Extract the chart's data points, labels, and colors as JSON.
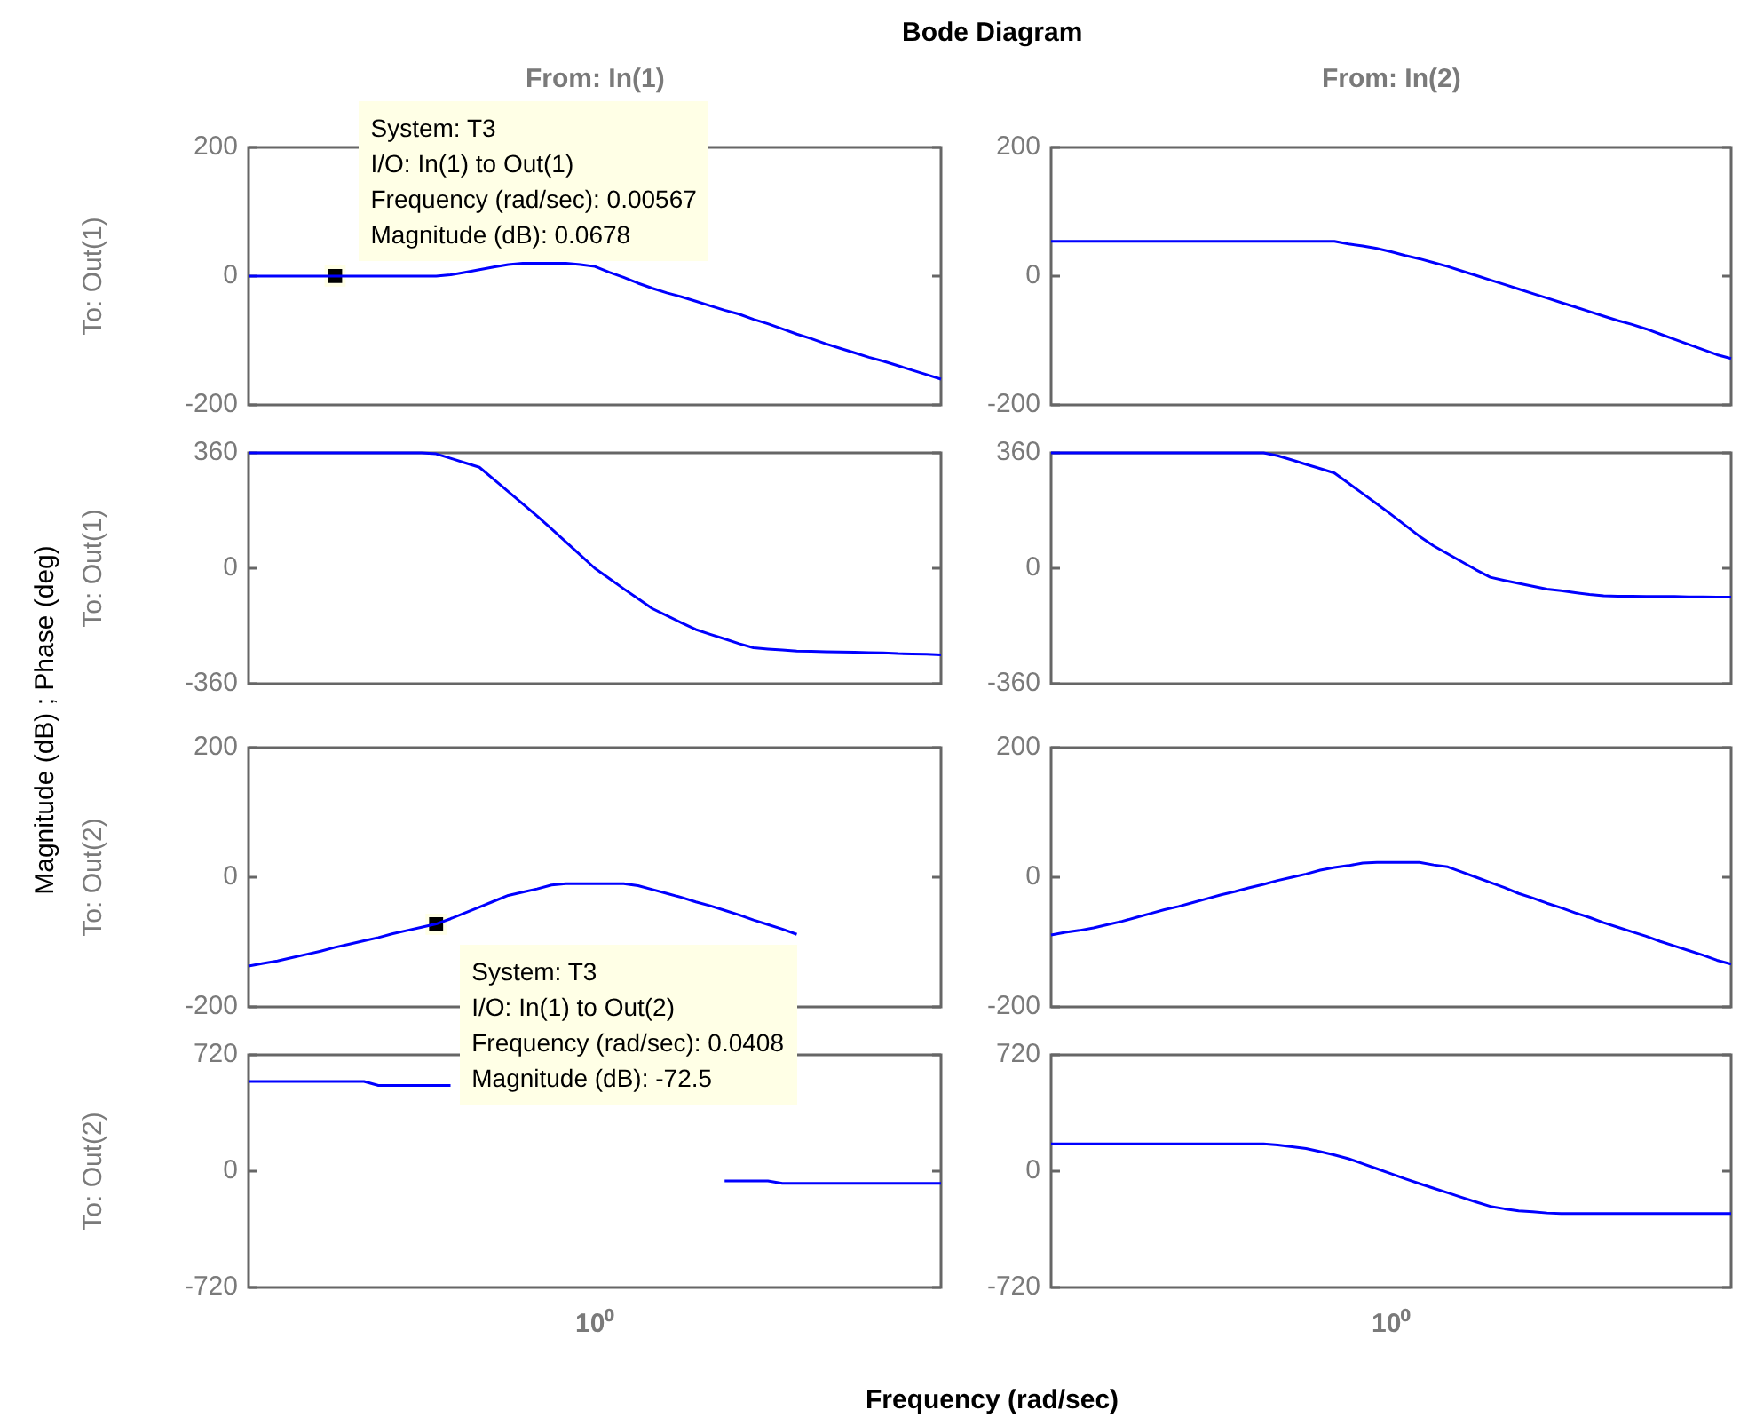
{
  "chart_data": [
    {
      "type": "line",
      "title": "Bode Diagram",
      "subtitle": "From: In(1)",
      "ylabel": "To: Out(1)",
      "tick_labels": "y",
      "categories": [
        null,
        null,
        null,
        null,
        null,
        null,
        null,
        null,
        null,
        null,
        null,
        null,
        null,
        null,
        null,
        null,
        null,
        null,
        null,
        null,
        null,
        null,
        null,
        null,
        null,
        null,
        null,
        null,
        null,
        null,
        null,
        null,
        null,
        null,
        null,
        null,
        null,
        null,
        null,
        null,
        null,
        null,
        null,
        null,
        null,
        null,
        null,
        null,
        null
      ],
      "series": [
        {
          "color": "#0000ff",
          "values": [
            0,
            0,
            0,
            0,
            0,
            0,
            0,
            0,
            0,
            0,
            0,
            0,
            0,
            0,
            2,
            6,
            10,
            14,
            18,
            20,
            20,
            20,
            20,
            18,
            15,
            6,
            -2,
            -11,
            -19,
            -26,
            -32,
            -39,
            -46,
            -53,
            -59,
            -67,
            -74,
            -82,
            -90,
            -97,
            -105,
            -112,
            -119,
            -126,
            -132,
            -139,
            -146,
            -153,
            -160
          ]
        },
        {
          "type": "scatter",
          "marker": "square",
          "color": "#000000",
          "values": [
            null,
            null,
            null,
            null,
            null,
            null,
            0.0678,
            null,
            null,
            null,
            null,
            null,
            null,
            null,
            null,
            null,
            null,
            null,
            null,
            null,
            null,
            null,
            null,
            null,
            null,
            null,
            null,
            null,
            null,
            null,
            null,
            null,
            null,
            null,
            null,
            null,
            null,
            null,
            null,
            null,
            null,
            null,
            null,
            null,
            null,
            null,
            null,
            null,
            null
          ]
        }
      ],
      "ylim": [
        -200,
        200
      ],
      "yticks": [
        -200,
        0,
        200
      ],
      "annotations": [
        "System: T3\nI/O: In(1) to Out(1)\nFrequency (rad/sec): 0.00567\nMagnitude (dB): 0.0678"
      ]
    },
    {
      "type": "line",
      "subtitle": "From: In(2)",
      "tick_labels": "y",
      "color": "#0000ff",
      "categories": [
        null,
        null,
        null,
        null,
        null,
        null,
        null,
        null,
        null,
        null,
        null,
        null,
        null,
        null,
        null,
        null,
        null,
        null,
        null,
        null,
        null,
        null,
        null,
        null,
        null,
        null,
        null,
        null,
        null,
        null,
        null,
        null,
        null,
        null,
        null,
        null,
        null,
        null,
        null,
        null,
        null,
        null,
        null,
        null,
        null,
        null,
        null,
        null,
        null
      ],
      "values": [
        54,
        54,
        54,
        54,
        54,
        54,
        54,
        54,
        54,
        54,
        54,
        54,
        54,
        54,
        54,
        54,
        54,
        54,
        54,
        54,
        54,
        50,
        47,
        43,
        38,
        32,
        27,
        21,
        15,
        8,
        1,
        -6,
        -13,
        -20,
        -27,
        -34,
        -41,
        -48,
        -55,
        -62,
        -69,
        -75,
        -82,
        -90,
        -98,
        -106,
        -114,
        -122,
        -128
      ],
      "ylim": [
        -200,
        200
      ],
      "yticks": [
        -200,
        0,
        200
      ]
    },
    {
      "type": "line",
      "ylabel": "To: Out(1)",
      "tick_labels": "y",
      "color": "#0000ff",
      "categories": [
        null,
        null,
        null,
        null,
        null,
        null,
        null,
        null,
        null,
        null,
        null,
        null,
        null,
        null,
        null,
        null,
        null,
        null,
        null,
        null,
        null,
        null,
        null,
        null,
        null,
        null,
        null,
        null,
        null,
        null,
        null,
        null,
        null,
        null,
        null,
        null,
        null,
        null,
        null,
        null,
        null,
        null,
        null,
        null,
        null,
        null,
        null,
        null,
        null
      ],
      "values": [
        360,
        360,
        360,
        360,
        360,
        360,
        360,
        360,
        360,
        360,
        360,
        360,
        360,
        357,
        343,
        329,
        315,
        277,
        239,
        201,
        163,
        123,
        82,
        41,
        0,
        -32,
        -64,
        -95,
        -126,
        -148,
        -170,
        -191,
        -206,
        -220,
        -235,
        -248,
        -252,
        -255,
        -258,
        -259,
        -260,
        -261,
        -262,
        -263,
        -264,
        -266,
        -267,
        -268,
        -270
      ],
      "ylim": [
        -360,
        360
      ],
      "yticks": [
        -360,
        0,
        360
      ],
      "annotations": [
        "Magnitude (dB) ; Phase (deg)"
      ]
    },
    {
      "type": "line",
      "tick_labels": "y",
      "color": "#0000ff",
      "categories": [
        null,
        null,
        null,
        null,
        null,
        null,
        null,
        null,
        null,
        null,
        null,
        null,
        null,
        null,
        null,
        null,
        null,
        null,
        null,
        null,
        null,
        null,
        null,
        null,
        null,
        null,
        null,
        null,
        null,
        null,
        null,
        null,
        null,
        null,
        null,
        null,
        null,
        null,
        null,
        null,
        null,
        null,
        null,
        null,
        null,
        null,
        null,
        null,
        null
      ],
      "values": [
        360,
        360,
        360,
        360,
        360,
        360,
        360,
        360,
        360,
        360,
        360,
        360,
        360,
        360,
        360,
        360,
        351,
        338,
        324,
        311,
        297,
        265,
        233,
        201,
        168,
        134,
        100,
        70,
        45,
        20,
        -5,
        -28,
        -38,
        -47,
        -56,
        -65,
        -70,
        -76,
        -82,
        -86,
        -87,
        -87,
        -88,
        -88,
        -88,
        -89,
        -89,
        -90,
        -90
      ],
      "ylim": [
        -360,
        360
      ],
      "yticks": [
        -360,
        0,
        360
      ]
    },
    {
      "type": "line",
      "ylabel": "To: Out(2)",
      "tick_labels": "y",
      "categories": [
        null,
        null,
        null,
        null,
        null,
        null,
        null,
        null,
        null,
        null,
        null,
        null,
        null,
        null,
        null,
        null,
        null,
        null,
        null,
        null,
        null,
        null,
        null,
        null,
        null,
        null,
        null,
        null,
        null,
        null,
        null,
        null,
        null,
        null,
        null,
        null,
        null,
        null,
        null,
        null,
        null,
        null,
        null,
        null,
        null,
        null,
        null,
        null,
        null
      ],
      "series": [
        {
          "color": "#0000ff",
          "values": [
            -137,
            -133,
            -129,
            -124,
            -119,
            -114,
            -108,
            -103,
            -98,
            -93,
            -87,
            -82,
            -77,
            -72,
            -64,
            -55,
            -46,
            -37,
            -28,
            -23,
            -18,
            -12,
            -10,
            -10,
            -10,
            -10,
            -10,
            -13,
            -19,
            -25,
            -31,
            -38,
            -44,
            -51,
            -58,
            -66,
            -73,
            -80,
            -88,
            null,
            null,
            null,
            null,
            null,
            null,
            null,
            null,
            null,
            null
          ]
        },
        {
          "type": "scatter",
          "marker": "square",
          "color": "#000000",
          "values": [
            null,
            null,
            null,
            null,
            null,
            null,
            null,
            null,
            null,
            null,
            null,
            null,
            null,
            -72.5,
            null,
            null,
            null,
            null,
            null,
            null,
            null,
            null,
            null,
            null,
            null,
            null,
            null,
            null,
            null,
            null,
            null,
            null,
            null,
            null,
            null,
            null,
            null,
            null,
            null,
            null,
            null,
            null,
            null,
            null,
            null,
            null,
            null,
            null,
            null
          ]
        }
      ],
      "ylim": [
        -200,
        200
      ],
      "yticks": [
        -200,
        0,
        200
      ],
      "annotations": [
        "System: T3\nI/O: In(1) to Out(2)\nFrequency (rad/sec): 0.0408\nMagnitude (dB): -72.5"
      ]
    },
    {
      "type": "line",
      "tick_labels": "y",
      "color": "#0000ff",
      "categories": [
        null,
        null,
        null,
        null,
        null,
        null,
        null,
        null,
        null,
        null,
        null,
        null,
        null,
        null,
        null,
        null,
        null,
        null,
        null,
        null,
        null,
        null,
        null,
        null,
        null,
        null,
        null,
        null,
        null,
        null,
        null,
        null,
        null,
        null,
        null,
        null,
        null,
        null,
        null,
        null,
        null,
        null,
        null,
        null,
        null,
        null,
        null,
        null,
        null
      ],
      "values": [
        -89,
        -85,
        -82,
        -78,
        -73,
        -68,
        -62,
        -56,
        -50,
        -45,
        -39,
        -33,
        -27,
        -22,
        -16,
        -11,
        -5,
        0,
        5,
        11,
        15,
        18,
        22,
        23,
        23,
        23,
        23,
        19,
        16,
        8,
        0,
        -8,
        -16,
        -25,
        -32,
        -40,
        -47,
        -55,
        -62,
        -70,
        -77,
        -84,
        -91,
        -99,
        -106,
        -113,
        -120,
        -128,
        -134
      ],
      "ylim": [
        -200,
        200
      ],
      "yticks": [
        -200,
        0,
        200
      ]
    },
    {
      "type": "line",
      "ylabel": "To: Out(2)",
      "xlabel": "Frequency  (rad/sec)",
      "tick_labels": "y",
      "color": "#0000ff",
      "categories": [
        null,
        null,
        null,
        null,
        null,
        null,
        null,
        null,
        null,
        null,
        null,
        null,
        null,
        null,
        null,
        null,
        null,
        null,
        null,
        null,
        null,
        null,
        null,
        null,
        null,
        null,
        null,
        null,
        null,
        null,
        null,
        null,
        null,
        null,
        null,
        null,
        null,
        null,
        null,
        null,
        null,
        null,
        null,
        null,
        null,
        null,
        null,
        null,
        null
      ],
      "values": [
        555,
        555,
        555,
        555,
        555,
        555,
        555,
        555,
        555,
        530,
        530,
        530,
        530,
        530,
        530,
        null,
        null,
        null,
        null,
        null,
        null,
        null,
        null,
        null,
        null,
        null,
        null,
        null,
        null,
        null,
        null,
        null,
        null,
        -60,
        -60,
        -60,
        -60,
        -75,
        -75,
        -75,
        -75,
        -75,
        -75,
        -75,
        -75,
        -75,
        -75,
        -75,
        -75
      ],
      "ylim": [
        -720,
        720
      ],
      "yticks": [
        -720,
        0,
        720
      ],
      "annotations": [
        "10⁰"
      ]
    },
    {
      "type": "line",
      "tick_labels": "y",
      "color": "#0000ff",
      "categories": [
        null,
        null,
        null,
        null,
        null,
        null,
        null,
        null,
        null,
        null,
        null,
        null,
        null,
        null,
        null,
        null,
        null,
        null,
        null,
        null,
        null,
        null,
        null,
        null,
        null,
        null,
        null,
        null,
        null,
        null,
        null,
        null,
        null,
        null,
        null,
        null,
        null,
        null,
        null,
        null,
        null,
        null,
        null,
        null,
        null,
        null,
        null,
        null,
        null
      ],
      "values": [
        169,
        169,
        169,
        169,
        169,
        169,
        169,
        169,
        169,
        169,
        169,
        169,
        169,
        169,
        169,
        169,
        162,
        151,
        140,
        121,
        100,
        77,
        46,
        15,
        -16,
        -47,
        -77,
        -106,
        -134,
        -163,
        -191,
        -218,
        -233,
        -246,
        -252,
        -259,
        -263,
        -263,
        -263,
        -263,
        -263,
        -263,
        -263,
        -263,
        -263,
        -263,
        -263,
        -263,
        -263
      ],
      "ylim": [
        -720,
        720
      ],
      "yticks": [
        -720,
        0,
        720
      ],
      "annotations": [
        "10⁰"
      ]
    }
  ]
}
